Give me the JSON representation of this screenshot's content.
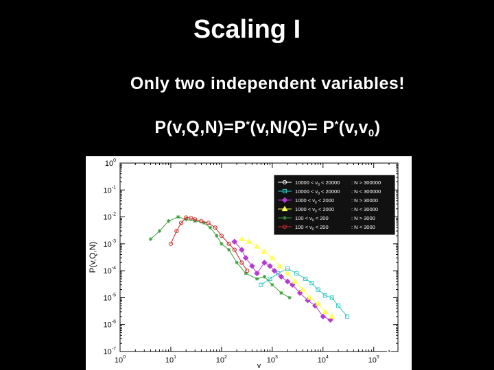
{
  "slide": {
    "title": "Scaling I",
    "subtitle": "Only two independent variables!",
    "formula": {
      "p1": "P(v,Q,N)=P",
      "star1": "*",
      "p2": "(v,N/Q)= P",
      "star2": "*",
      "p3": "(v,v",
      "sub": "0",
      "p4": ")"
    }
  },
  "chart_data": {
    "type": "line",
    "xscale": "log",
    "yscale": "log",
    "xlim": [
      1,
      300000
    ],
    "ylim": [
      1e-07,
      1
    ],
    "xlabel": "v",
    "ylabel": "P(v,Q,N)",
    "xticks": [
      {
        "b": "10",
        "e": "0"
      },
      {
        "b": "10",
        "e": "1"
      },
      {
        "b": "10",
        "e": "2"
      },
      {
        "b": "10",
        "e": "3"
      },
      {
        "b": "10",
        "e": "4"
      },
      {
        "b": "10",
        "e": "5"
      }
    ],
    "yticks": [
      {
        "b": "10",
        "e": "0"
      },
      {
        "b": "10",
        "e": "-1"
      },
      {
        "b": "10",
        "e": "-2"
      },
      {
        "b": "10",
        "e": "-3"
      },
      {
        "b": "10",
        "e": "-4"
      },
      {
        "b": "10",
        "e": "-5"
      },
      {
        "b": "10",
        "e": "-6"
      },
      {
        "b": "10",
        "e": "-7"
      }
    ],
    "legend_position": "top-right",
    "series": [
      {
        "name": "10000 < v",
        "sub": "0",
        "rest": " < 20000",
        "cond": ": N > 300000",
        "color": "#ffffff",
        "marker": "circle",
        "points": [
          [
            400,
            5e-05
          ],
          [
            600,
            0.00012
          ],
          [
            900,
            0.0001
          ],
          [
            1400,
            0.00015
          ],
          [
            2000,
            0.0001
          ],
          [
            3000,
            5e-05
          ],
          [
            5000,
            2e-05
          ],
          [
            8000,
            1.2e-05
          ],
          [
            12000,
            8e-06
          ],
          [
            20000,
            4e-06
          ],
          [
            30000,
            2e-06
          ],
          [
            50000,
            1e-06
          ],
          [
            80000,
            4e-07
          ],
          [
            120000,
            1.5e-07
          ],
          [
            200000,
            1e-07
          ]
        ]
      },
      {
        "name": "10000 < v",
        "sub": "0",
        "rest": " < 20000",
        "cond": ": N < 300000",
        "color": "#35c6c6",
        "marker": "square",
        "points": [
          [
            600,
            3e-05
          ],
          [
            900,
            5e-05
          ],
          [
            1300,
            8e-05
          ],
          [
            2000,
            0.00012
          ],
          [
            3000,
            8e-05
          ],
          [
            4500,
            5e-05
          ],
          [
            6000,
            3.5e-05
          ],
          [
            8000,
            2e-05
          ],
          [
            11000,
            1.2e-05
          ],
          [
            15000,
            1e-05
          ],
          [
            20000,
            5e-06
          ],
          [
            30000,
            2e-06
          ]
        ]
      },
      {
        "name": "1000 < v",
        "sub": "0",
        "rest": " < 2000",
        "cond": ": N > 30000",
        "color": "#b43cd2",
        "marker": "diamond",
        "points": [
          [
            180,
            0.0012
          ],
          [
            250,
            0.0006
          ],
          [
            300,
            0.0003
          ],
          [
            400,
            0.00015
          ],
          [
            500,
            8e-05
          ],
          [
            700,
            0.0002
          ],
          [
            900,
            0.00015
          ],
          [
            1100,
            0.0001
          ],
          [
            1500,
            6e-05
          ],
          [
            2000,
            4e-05
          ],
          [
            2500,
            3e-05
          ],
          [
            3500,
            1.5e-05
          ],
          [
            5000,
            8e-06
          ],
          [
            7000,
            5e-06
          ],
          [
            10000,
            2e-06
          ],
          [
            14000,
            1.5e-06
          ]
        ]
      },
      {
        "name": "1000 < v",
        "sub": "0",
        "rest": " < 2000",
        "cond": ": N < 30000",
        "color": "#ffff55",
        "marker": "triangle",
        "points": [
          [
            250,
            0.0015
          ],
          [
            350,
            0.0012
          ],
          [
            500,
            0.0008
          ],
          [
            700,
            0.0005
          ],
          [
            1000,
            0.0003
          ],
          [
            1400,
            0.00015
          ],
          [
            2000,
            8e-05
          ],
          [
            2800,
            4e-05
          ],
          [
            4000,
            2e-05
          ],
          [
            5500,
            1e-05
          ],
          [
            8000,
            6e-06
          ],
          [
            11000,
            3e-06
          ],
          [
            15000,
            2e-06
          ]
        ]
      },
      {
        "name": "100 < v",
        "sub": "0",
        "rest": " < 200",
        "cond": ": N > 3000",
        "color": "#3aa03a",
        "marker": "star",
        "points": [
          [
            4,
            0.0015
          ],
          [
            6,
            0.003
          ],
          [
            9,
            0.007
          ],
          [
            14,
            0.01
          ],
          [
            20,
            0.008
          ],
          [
            30,
            0.007
          ],
          [
            45,
            0.006
          ],
          [
            60,
            0.004
          ],
          [
            80,
            0.002
          ],
          [
            100,
            0.001
          ],
          [
            140,
            0.0006
          ],
          [
            200,
            0.0002
          ],
          [
            300,
            8e-05
          ],
          [
            500,
            5e-05
          ],
          [
            700,
            6e-05
          ],
          [
            1000,
            3e-05
          ],
          [
            1500,
            1.5e-05
          ],
          [
            2200,
            1e-05
          ]
        ]
      },
      {
        "name": "100 < v",
        "sub": "0",
        "rest": " < 200",
        "cond": ": N < 3000",
        "color": "#c82828",
        "marker": "circle",
        "points": [
          [
            10,
            0.001
          ],
          [
            13,
            0.003
          ],
          [
            16,
            0.006
          ],
          [
            20,
            0.0095
          ],
          [
            25,
            0.009
          ],
          [
            30,
            0.008
          ],
          [
            40,
            0.007
          ],
          [
            55,
            0.006
          ],
          [
            75,
            0.004
          ],
          [
            100,
            0.002
          ],
          [
            140,
            0.001
          ],
          [
            180,
            0.0006
          ],
          [
            250,
            0.0002
          ],
          [
            320,
            0.0001
          ]
        ]
      }
    ]
  }
}
